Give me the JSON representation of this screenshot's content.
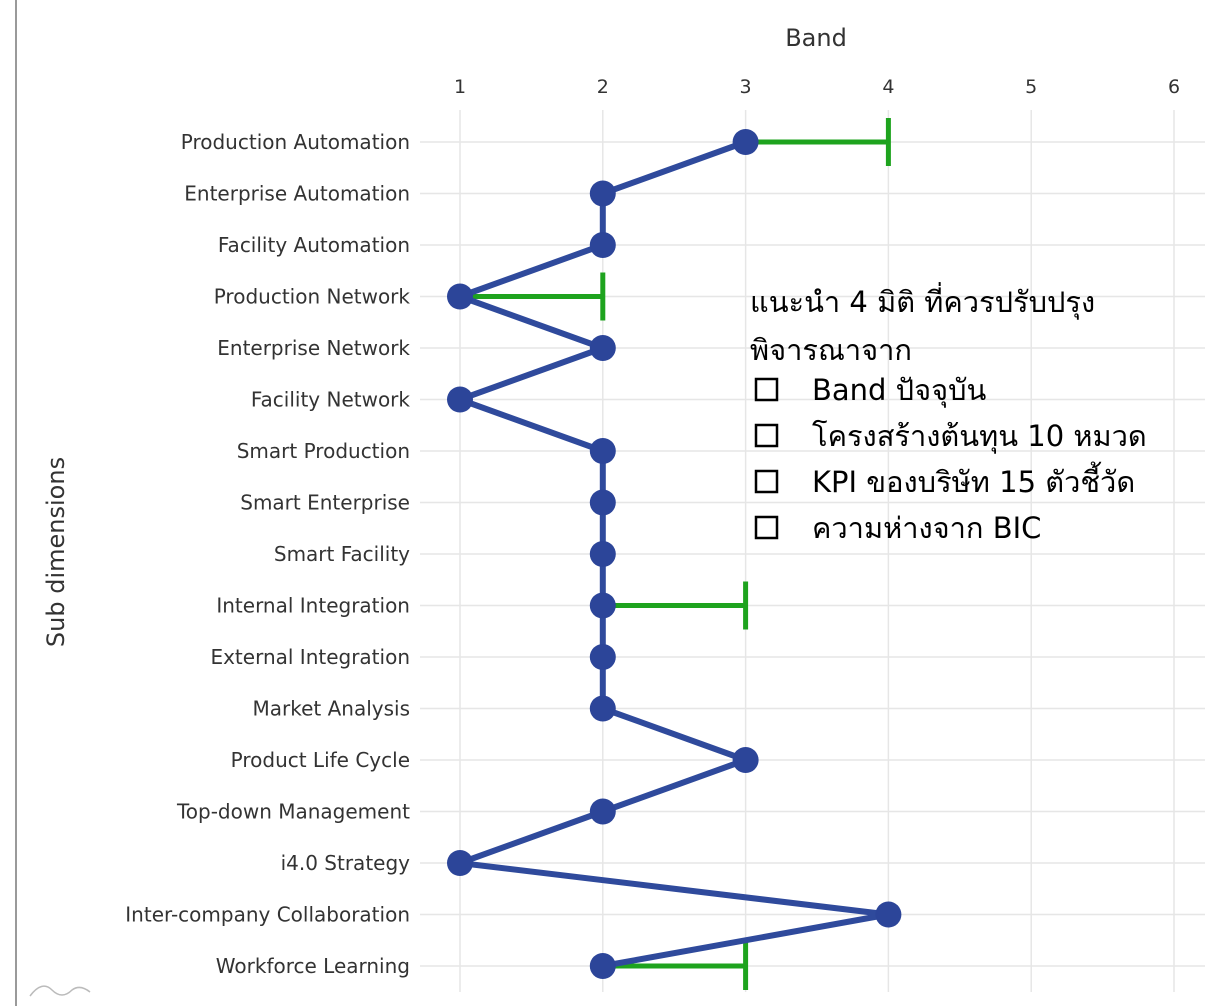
{
  "chart_data": {
    "type": "line",
    "orientation": "horizontal",
    "title": "",
    "xlabel": "Band",
    "ylabel": "Sub dimensions",
    "xlim": [
      1,
      6
    ],
    "x_ticks": [
      1,
      2,
      3,
      4,
      5,
      6
    ],
    "grid": true,
    "categories": [
      "Production Automation",
      "Enterprise Automation",
      "Facility Automation",
      "Production Network",
      "Enterprise Network",
      "Facility Network",
      "Smart Production",
      "Smart Enterprise",
      "Smart Facility",
      "Internal Integration",
      "External Integration",
      "Market Analysis",
      "Product Life Cycle",
      "Top-down Management",
      "i4.0 Strategy",
      "Inter-company Collaboration",
      "Workforce Learning"
    ],
    "series": [
      {
        "values": [
          3,
          2,
          2,
          1,
          2,
          1,
          2,
          2,
          2,
          2,
          2,
          2,
          3,
          2,
          1,
          4,
          2
        ]
      }
    ],
    "improvement_targets": [
      {
        "category": "Production Automation",
        "from": 3,
        "to": 4
      },
      {
        "category": "Production Network",
        "from": 1,
        "to": 2
      },
      {
        "category": "Internal Integration",
        "from": 2,
        "to": 3
      },
      {
        "category": "Workforce Learning",
        "from": 2,
        "to": 3
      }
    ],
    "annotation": {
      "heading_lines": [
        "แนะนำ 4 มิติ ที่ควรปรับปรุง",
        "พิจารณาจาก"
      ],
      "bullets": [
        "Band ปัจจุบัน",
        "โครงสร้างต้นทุน 10 หมวด",
        "KPI ของบริษัท 15 ตัวชี้วัด",
        "ความห่างจาก BIC"
      ]
    },
    "colors": {
      "line": "#2f4a9c",
      "marker": "#2c4599",
      "target": "#1ea31e",
      "grid": "#e6e6e6",
      "text": "#333333",
      "annotation_text": "#000000",
      "border": "#9a9a9a"
    }
  }
}
